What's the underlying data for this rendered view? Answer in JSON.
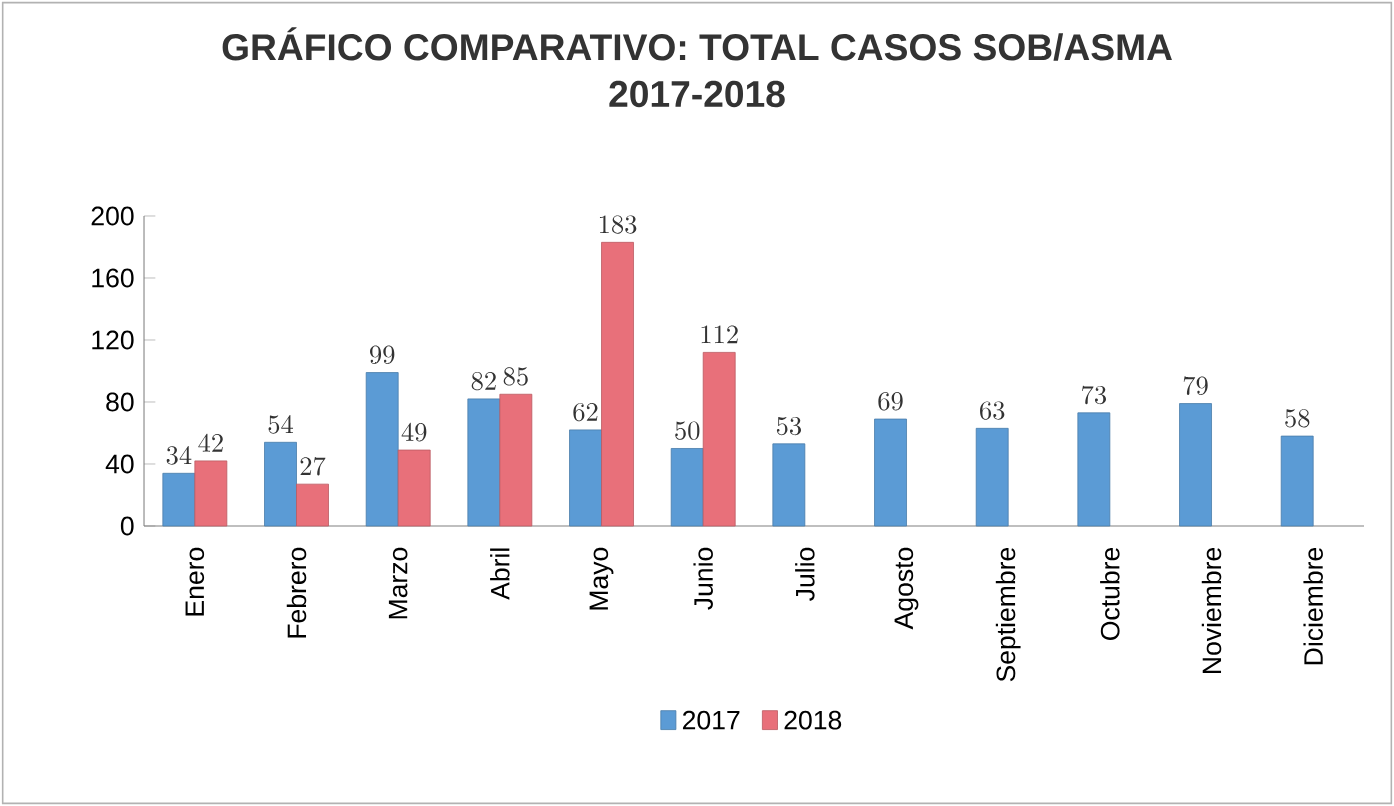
{
  "chart_data": {
    "type": "bar",
    "title": "GRÁFICO COMPARATIVO: TOTAL CASOS SOB/ASMA",
    "subtitle": "2017-2018",
    "categories": [
      "Enero",
      "Febrero",
      "Marzo",
      "Abril",
      "Mayo",
      "Junio",
      "Julio",
      "Agosto",
      "Septiembre",
      "Octubre",
      "Noviembre",
      "Diciembre"
    ],
    "series": [
      {
        "name": "2017",
        "color": "#5b9bd5",
        "values": [
          34,
          54,
          99,
          82,
          62,
          50,
          53,
          69,
          63,
          73,
          79,
          58
        ]
      },
      {
        "name": "2018",
        "color": "#e8707a",
        "values": [
          42,
          27,
          49,
          85,
          183,
          112,
          null,
          null,
          null,
          null,
          null,
          null
        ]
      }
    ],
    "ylim": [
      0,
      200
    ],
    "yticks": [
      0,
      40,
      80,
      120,
      160,
      200
    ],
    "grid": false,
    "legend": "bottom",
    "data_labels": true
  }
}
